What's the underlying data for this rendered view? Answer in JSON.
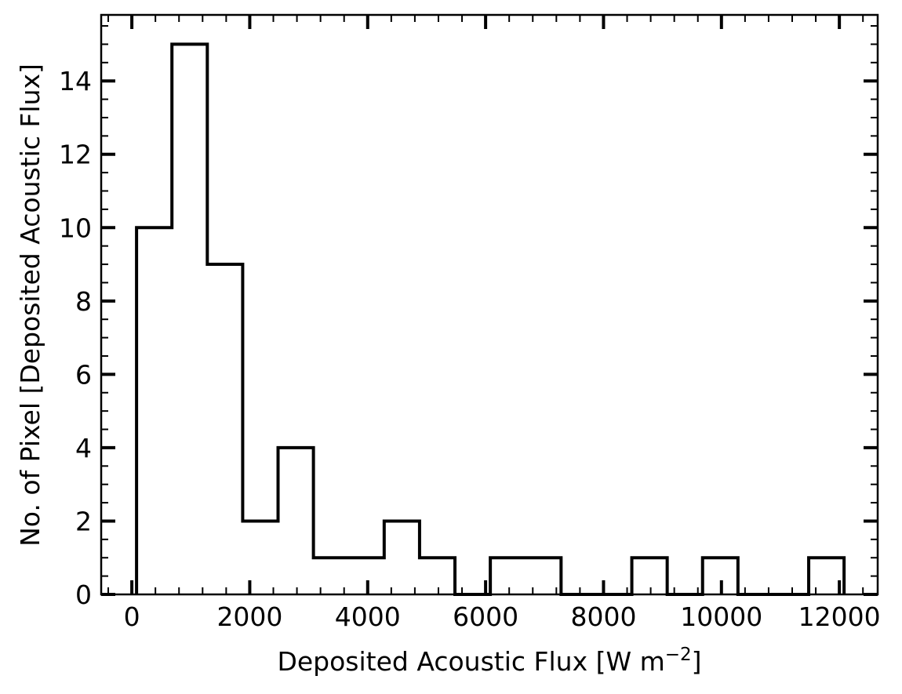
{
  "chart_data": {
    "type": "histogram",
    "xlabel": "Deposited Acoustic Flux [W m",
    "xlabel_sup": "−2",
    "xlabel_end": "]",
    "ylabel": "No. of Pixel [Deposited Acoustic Flux]",
    "xlim": [
      -520,
      12650
    ],
    "ylim": [
      0,
      15.8
    ],
    "x_ticks": [
      0,
      2000,
      4000,
      6000,
      8000,
      10000,
      12000
    ],
    "x_tick_labels": [
      "0",
      "2000",
      "4000",
      "6000",
      "8000",
      "10000",
      "12000"
    ],
    "y_ticks": [
      0,
      2,
      4,
      6,
      8,
      10,
      12,
      14
    ],
    "y_tick_labels": [
      "0",
      "2",
      "4",
      "6",
      "8",
      "10",
      "12",
      "14"
    ],
    "bin_edges": [
      80,
      680,
      1280,
      1880,
      2480,
      3080,
      3680,
      4280,
      4880,
      5480,
      6080,
      6680,
      7280,
      7880,
      8480,
      9080,
      9680,
      10280,
      10880,
      11480,
      12080
    ],
    "counts": [
      10,
      15,
      9,
      2,
      4,
      1,
      1,
      2,
      1,
      0,
      1,
      1,
      0,
      0,
      1,
      0,
      1,
      0,
      0,
      1
    ],
    "grid": false,
    "line_color": "#000000"
  }
}
